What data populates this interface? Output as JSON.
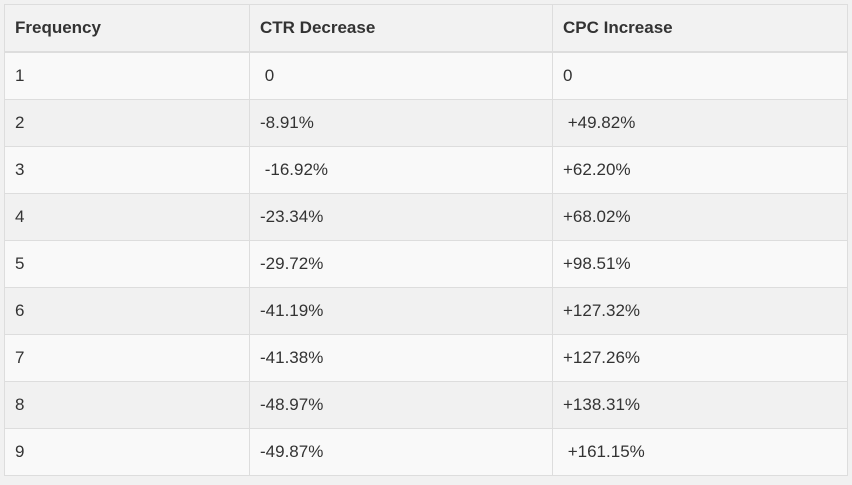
{
  "table": {
    "headers": [
      "Frequency",
      "CTR Decrease",
      "CPC Increase"
    ],
    "rows": [
      [
        "1",
        " 0",
        "0"
      ],
      [
        "2",
        "-8.91%",
        " +49.82%"
      ],
      [
        "3",
        " -16.92%",
        "+62.20%"
      ],
      [
        "4",
        "-23.34%",
        "+68.02%"
      ],
      [
        "5",
        "-29.72%",
        "+98.51%"
      ],
      [
        "6",
        "-41.19%",
        "+127.32%"
      ],
      [
        "7",
        "-41.38%",
        "+127.26%"
      ],
      [
        "8",
        "-48.97%",
        "+138.31%"
      ],
      [
        "9",
        "-49.87%",
        " +161.15%"
      ]
    ]
  },
  "colors": {
    "header_bg": "#f2f2f2",
    "row_odd_bg": "#f9f9f9",
    "row_even_bg": "#f1f1f1",
    "border": "#dddddd",
    "text": "#333333"
  }
}
